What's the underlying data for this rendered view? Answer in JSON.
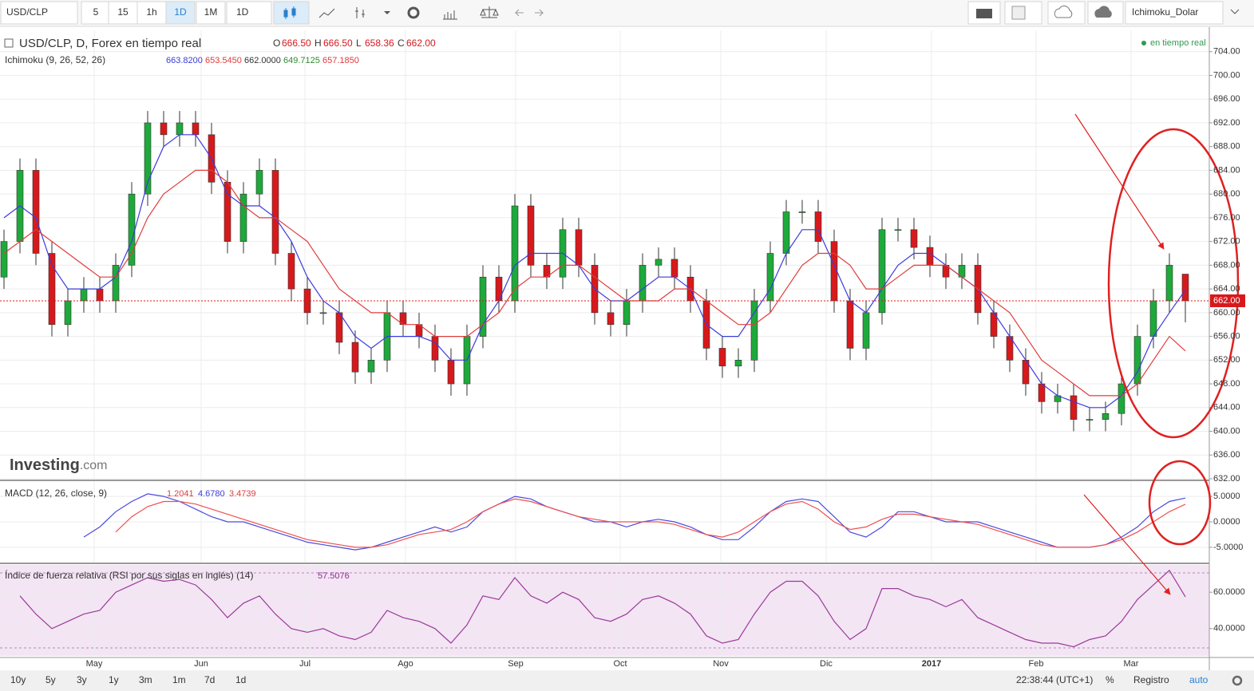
{
  "toolbar": {
    "symbol": "USD/CLP",
    "intervals": [
      "5",
      "15",
      "1h",
      "1D",
      "1M",
      "1D"
    ],
    "layout": "Ichimoku_Dolar"
  },
  "header": {
    "title": "USD/CLP, D, Forex en tiempo real",
    "ohlc": [
      {
        "key": "O",
        "value": "666.50"
      },
      {
        "key": "H",
        "value": "666.50"
      },
      {
        "key": "L",
        "value": "658.36"
      },
      {
        "key": "C",
        "value": "662.00"
      }
    ],
    "status": "en tiempo real",
    "logo": "Investing",
    "logo_suffix": ".com"
  },
  "indicators": {
    "ichimoku": {
      "label": "Ichimoku (9, 26, 52, 26)",
      "values": [
        {
          "text": "663.8200",
          "color": "#3b3bdc"
        },
        {
          "text": "653.5450",
          "color": "#e03c3c"
        },
        {
          "text": "662.0000",
          "color": "#333333"
        },
        {
          "text": "649.7125",
          "color": "#2e8b2e"
        },
        {
          "text": "657.1850",
          "color": "#e03c3c"
        }
      ]
    },
    "macd": {
      "label": "MACD (12, 26, close, 9)",
      "values": [
        {
          "text": "1.2041",
          "color": "#e03c3c"
        },
        {
          "text": "4.6780",
          "color": "#3b3bdc"
        },
        {
          "text": "3.4739",
          "color": "#e03c3c"
        }
      ]
    },
    "rsi": {
      "label": "Índice de fuerza relativa (RSI por sus siglas en inglés) (14)",
      "values": [
        {
          "text": "57.5076",
          "color": "#8e2c8e"
        }
      ]
    }
  },
  "last_price": {
    "value": 662,
    "label": "662.00"
  },
  "footer": {
    "ranges": [
      "10y",
      "5y",
      "3y",
      "1y",
      "3m",
      "1m",
      "7d",
      "1d"
    ],
    "clock": "22:38:44 (UTC+1)",
    "percent": "%",
    "log": "Registro",
    "auto": "auto"
  },
  "chart_data": [
    {
      "type": "candlestick",
      "up_color": "#1ea93b",
      "down_color": "#d7191c",
      "xlim": [
        -0.25,
        75.5
      ],
      "ylim": [
        632,
        707.6
      ],
      "yticks": [
        {
          "value": 632,
          "label": "632.00"
        },
        {
          "value": 636,
          "label": "636.00"
        },
        {
          "value": 640,
          "label": "640.00"
        },
        {
          "value": 644,
          "label": "644.00"
        },
        {
          "value": 648,
          "label": "648.00"
        },
        {
          "value": 652,
          "label": "652.00"
        },
        {
          "value": 656,
          "label": "656.00"
        },
        {
          "value": 660,
          "label": "660.00"
        },
        {
          "value": 664,
          "label": "664.00"
        },
        {
          "value": 668,
          "label": "668.00"
        },
        {
          "value": 672,
          "label": "672.00"
        },
        {
          "value": 676,
          "label": "676.00"
        },
        {
          "value": 680,
          "label": "680.00"
        },
        {
          "value": 684,
          "label": "684.00"
        },
        {
          "value": 688,
          "label": "688.00"
        },
        {
          "value": 692,
          "label": "692.00"
        },
        {
          "value": 696,
          "label": "696.00"
        },
        {
          "value": 700,
          "label": "700.00"
        },
        {
          "value": 704,
          "label": "704.00"
        }
      ],
      "open": [
        666,
        672,
        684,
        670,
        658,
        662,
        664,
        662,
        668,
        680,
        692,
        690,
        692,
        690,
        682,
        672,
        680,
        684,
        670,
        664,
        660,
        660,
        655,
        650,
        652,
        660,
        658,
        656,
        652,
        648,
        656,
        666,
        662,
        678,
        668,
        666,
        674,
        668,
        660,
        658,
        662,
        668,
        669,
        666,
        662,
        654,
        651,
        652,
        662,
        670,
        677,
        677,
        672,
        662,
        654,
        660,
        674,
        674,
        671,
        668,
        666,
        668,
        660,
        656,
        652,
        648,
        645,
        646,
        642,
        642,
        643,
        648,
        656,
        662,
        666.5
      ],
      "high": [
        674,
        686,
        686,
        672,
        664,
        666,
        666,
        670,
        682,
        694,
        694,
        694,
        694,
        692,
        684,
        682,
        686,
        686,
        672,
        666,
        662,
        662,
        657,
        654,
        662,
        662,
        660,
        658,
        654,
        658,
        668,
        668,
        680,
        680,
        670,
        676,
        676,
        670,
        662,
        664,
        670,
        671,
        671,
        668,
        664,
        656,
        654,
        664,
        672,
        679,
        679,
        679,
        674,
        664,
        662,
        676,
        676,
        676,
        673,
        670,
        670,
        670,
        662,
        658,
        654,
        650,
        648,
        648,
        644,
        645,
        650,
        658,
        664,
        670,
        666.5
      ],
      "low": [
        664,
        670,
        668,
        656,
        656,
        660,
        660,
        660,
        666,
        678,
        688,
        688,
        688,
        680,
        670,
        670,
        678,
        668,
        662,
        658,
        658,
        653,
        648,
        648,
        650,
        656,
        654,
        650,
        646,
        646,
        654,
        660,
        660,
        666,
        664,
        664,
        666,
        658,
        656,
        656,
        660,
        666,
        664,
        660,
        652,
        649,
        649,
        650,
        660,
        668,
        675,
        670,
        660,
        652,
        652,
        658,
        672,
        669,
        666,
        664,
        664,
        658,
        654,
        650,
        646,
        643,
        643,
        640,
        640,
        640,
        641,
        646,
        654,
        660,
        658.36
      ],
      "close": [
        672,
        684,
        670,
        658,
        662,
        664,
        662,
        668,
        680,
        692,
        690,
        692,
        690,
        682,
        672,
        680,
        684,
        670,
        664,
        660,
        660,
        655,
        650,
        652,
        660,
        658,
        656,
        652,
        648,
        656,
        666,
        662,
        678,
        668,
        666,
        674,
        668,
        660,
        658,
        662,
        668,
        669,
        666,
        662,
        654,
        651,
        652,
        662,
        670,
        677,
        677,
        672,
        662,
        654,
        660,
        674,
        674,
        671,
        668,
        666,
        668,
        660,
        656,
        652,
        648,
        645,
        646,
        642,
        642,
        643,
        648,
        656,
        662,
        668,
        662
      ],
      "series": [
        {
          "color": "#3b3bdc",
          "values": [
            676,
            678,
            676,
            668,
            664,
            664,
            664,
            666,
            672,
            682,
            688,
            690,
            690,
            686,
            680,
            678,
            678,
            676,
            672,
            666,
            662,
            660,
            656,
            654,
            656,
            656,
            656,
            655,
            652,
            652,
            658,
            662,
            668,
            670,
            670,
            670,
            668,
            664,
            662,
            662,
            664,
            666,
            666,
            664,
            658,
            656,
            656,
            660,
            664,
            670,
            674,
            674,
            668,
            662,
            660,
            664,
            668,
            670,
            670,
            668,
            666,
            664,
            660,
            656,
            652,
            648,
            646,
            645,
            644,
            644,
            646,
            650,
            656,
            660,
            663.82
          ]
        },
        {
          "color": "#e03c3c",
          "values": [
            670,
            672,
            674,
            672,
            670,
            668,
            666,
            666,
            670,
            676,
            680,
            682,
            684,
            684,
            682,
            678,
            676,
            676,
            674,
            672,
            668,
            664,
            662,
            660,
            660,
            658,
            658,
            656,
            656,
            656,
            658,
            660,
            664,
            666,
            666,
            668,
            668,
            666,
            664,
            662,
            662,
            662,
            664,
            664,
            662,
            660,
            658,
            658,
            660,
            664,
            668,
            670,
            670,
            668,
            664,
            664,
            666,
            668,
            668,
            668,
            666,
            664,
            662,
            660,
            656,
            652,
            650,
            648,
            646,
            646,
            646,
            648,
            652,
            656,
            653.545
          ]
        }
      ]
    },
    {
      "type": "line",
      "xlim": [
        -0.25,
        75.5
      ],
      "ylim": [
        -8,
        8
      ],
      "yticks": [
        {
          "value": -5,
          "label": "-5.0000"
        },
        {
          "value": 0,
          "label": "0.0000"
        },
        {
          "value": 5,
          "label": "5.0000"
        }
      ],
      "series": [
        {
          "color": "#4a4ae0",
          "values": [
            null,
            null,
            null,
            null,
            null,
            -3,
            -1,
            2,
            4,
            5.5,
            5,
            4,
            2.5,
            1,
            0,
            0,
            -1,
            -2,
            -3,
            -4,
            -4.5,
            -5,
            -5.5,
            -5,
            -4,
            -3,
            -2,
            -1,
            -2,
            -1,
            2,
            3.5,
            5,
            4.5,
            3,
            2,
            1,
            0,
            0,
            -1,
            0,
            0.5,
            0,
            -1,
            -2.5,
            -3.5,
            -3.5,
            -1,
            2,
            4,
            4.5,
            4,
            1,
            -2,
            -3,
            -1,
            2,
            2,
            1,
            0,
            0,
            0,
            -1,
            -2,
            -3,
            -4,
            -5,
            -5,
            -5,
            -4.5,
            -3,
            -1,
            2,
            4,
            4.678
          ]
        },
        {
          "color": "#f05050",
          "values": [
            null,
            null,
            null,
            null,
            null,
            null,
            null,
            -2,
            1,
            3,
            4,
            4,
            3.5,
            2.5,
            1.5,
            0.5,
            -0.5,
            -1.5,
            -2.5,
            -3.5,
            -4,
            -4.5,
            -5,
            -5,
            -4.5,
            -3.5,
            -2.5,
            -2,
            -1.5,
            0,
            2,
            3.5,
            4.5,
            4,
            3,
            2,
            1,
            0.5,
            0,
            0,
            0,
            0,
            -0.5,
            -1.5,
            -2.5,
            -3,
            -2,
            0,
            2,
            3.5,
            4,
            2.5,
            0,
            -1.5,
            -1,
            0.5,
            1.5,
            1.5,
            1,
            0.5,
            0,
            -0.5,
            -1.5,
            -2.5,
            -3.5,
            -4.5,
            -5,
            -5,
            -5,
            -4.5,
            -3.5,
            -2,
            0,
            2,
            3.4739
          ]
        }
      ]
    },
    {
      "type": "line",
      "xlim": [
        -0.25,
        75.5
      ],
      "ylim": [
        25,
        75
      ],
      "yticks": [
        {
          "value": 40,
          "label": "40.0000"
        },
        {
          "value": 60,
          "label": "60.0000"
        }
      ],
      "xticks": [
        {
          "value": 5.65,
          "label": "May"
        },
        {
          "value": 12.35,
          "label": "Jun"
        },
        {
          "value": 18.85,
          "label": "Jul"
        },
        {
          "value": 25.15,
          "label": "Ago"
        },
        {
          "value": 32.05,
          "label": "Sep"
        },
        {
          "value": 38.6,
          "label": "Oct"
        },
        {
          "value": 44.9,
          "label": "Nov"
        },
        {
          "value": 51.5,
          "label": "Dic"
        },
        {
          "value": 58.1,
          "label": "2017"
        },
        {
          "value": 64.65,
          "label": "Feb"
        },
        {
          "value": 70.6,
          "label": "Mar"
        }
      ],
      "series": [
        {
          "color": "#9b3a9b",
          "values": [
            null,
            58,
            48,
            40,
            44,
            48,
            50,
            60,
            64,
            68,
            66,
            67,
            64,
            56,
            46,
            54,
            58,
            48,
            40,
            38,
            40,
            36,
            34,
            38,
            50,
            46,
            44,
            40,
            32,
            42,
            58,
            56,
            68,
            58,
            54,
            60,
            56,
            46,
            44,
            48,
            56,
            58,
            54,
            48,
            36,
            32,
            34,
            48,
            60,
            66,
            66,
            58,
            44,
            34,
            40,
            62,
            62,
            58,
            56,
            52,
            56,
            46,
            42,
            38,
            34,
            32,
            32,
            30,
            34,
            36,
            44,
            56,
            64,
            72,
            57.5076
          ]
        }
      ]
    }
  ]
}
